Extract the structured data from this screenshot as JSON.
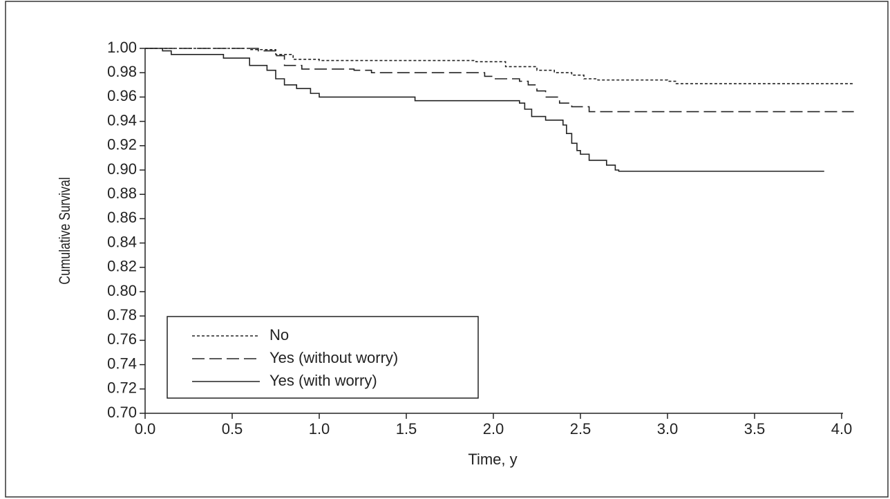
{
  "chart_data": {
    "type": "step",
    "xlabel": "Time, y",
    "ylabel": "Cumulative Survival",
    "xlim": [
      0,
      4.0
    ],
    "ylim": [
      0.7,
      1.0
    ],
    "xticks": [
      {
        "value": 0,
        "label": "0.0"
      },
      0.5,
      {
        "value": 1,
        "label": "1.0"
      },
      1.5,
      {
        "value": 2,
        "label": "2.0"
      },
      2.5,
      {
        "value": 3,
        "label": "3.0"
      },
      3.5,
      {
        "value": 4,
        "label": "4.0"
      }
    ],
    "yticks": [
      {
        "value": 0.7,
        "label": "0.70"
      },
      0.72,
      0.74,
      0.76,
      0.78,
      {
        "value": 0.8,
        "label": "0.80"
      },
      0.82,
      0.84,
      0.86,
      0.88,
      {
        "value": 0.9,
        "label": "0.90"
      },
      0.92,
      0.94,
      0.96,
      0.98,
      {
        "value": 1,
        "label": "1.00"
      }
    ],
    "legend": "lower left",
    "series": [
      {
        "name": "No",
        "color": "#222",
        "dash": "4,3",
        "x": [
          0,
          0.6,
          0.75,
          0.85,
          1.0,
          1.9,
          2.07,
          2.25,
          2.35,
          2.45,
          2.52,
          2.6,
          3.0,
          3.05,
          4.07
        ],
        "values": [
          1.0,
          0.999,
          0.995,
          0.991,
          0.99,
          0.989,
          0.985,
          0.982,
          0.98,
          0.978,
          0.975,
          0.974,
          0.973,
          0.971,
          0.971
        ]
      },
      {
        "name": "Yes (without worry)",
        "color": "#222",
        "dash": "18,7",
        "x": [
          0,
          0.65,
          0.75,
          0.8,
          0.9,
          1.2,
          1.3,
          1.95,
          2.0,
          2.15,
          2.2,
          2.25,
          2.3,
          2.38,
          2.45,
          2.55,
          4.07
        ],
        "values": [
          1.0,
          0.998,
          0.994,
          0.986,
          0.983,
          0.982,
          0.98,
          0.977,
          0.975,
          0.973,
          0.97,
          0.965,
          0.96,
          0.955,
          0.952,
          0.948,
          0.948
        ]
      },
      {
        "name": "Yes (with worry)",
        "color": "#222",
        "dash": "none",
        "x": [
          0,
          0.1,
          0.15,
          0.45,
          0.6,
          0.7,
          0.75,
          0.8,
          0.87,
          0.95,
          1.0,
          1.55,
          2.15,
          2.18,
          2.22,
          2.3,
          2.4,
          2.42,
          2.45,
          2.48,
          2.5,
          2.55,
          2.65,
          2.7,
          2.72,
          3.9
        ],
        "values": [
          1.0,
          0.998,
          0.995,
          0.992,
          0.986,
          0.982,
          0.975,
          0.97,
          0.967,
          0.963,
          0.96,
          0.957,
          0.955,
          0.95,
          0.944,
          0.941,
          0.937,
          0.93,
          0.922,
          0.916,
          0.913,
          0.908,
          0.904,
          0.9,
          0.899,
          0.899
        ]
      }
    ]
  }
}
